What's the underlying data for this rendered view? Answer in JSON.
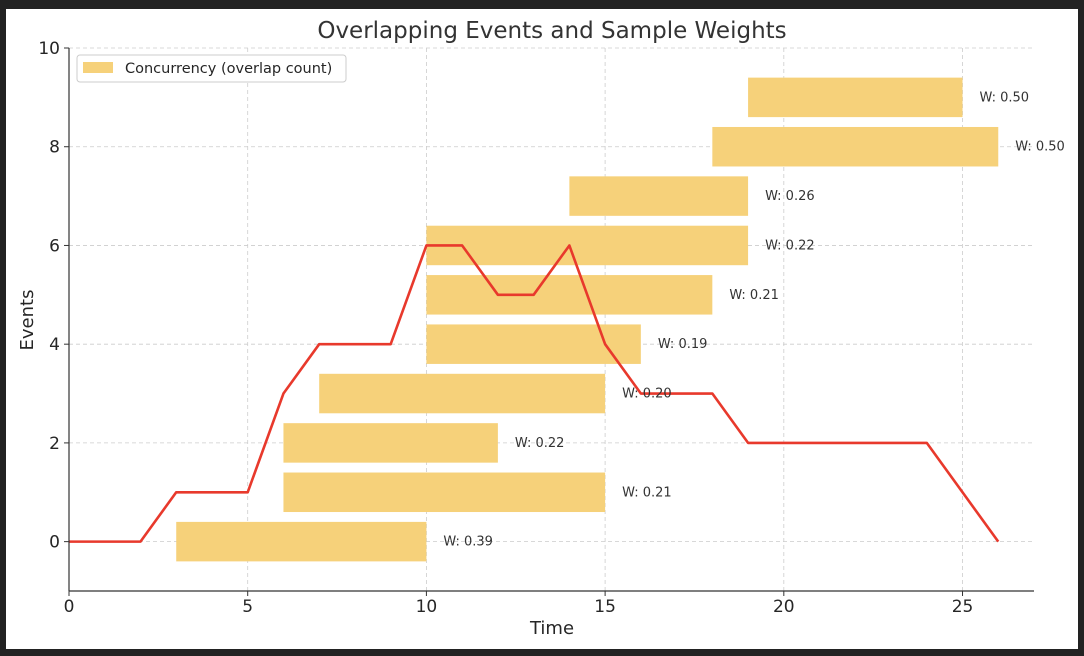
{
  "chart_data": {
    "type": "bar",
    "title": "Overlapping Events and Sample Weights",
    "xlabel": "Time",
    "ylabel": "Events",
    "xlim": [
      0,
      27
    ],
    "ylim": [
      -1,
      10
    ],
    "xticks": [
      "0",
      "5",
      "10",
      "15",
      "20",
      "25"
    ],
    "yticks": [
      "0",
      "2",
      "4",
      "6",
      "8",
      "10"
    ],
    "grid": true,
    "legend_position": "top-left",
    "colors": {
      "bars": "#f6d17a",
      "concurrency_line": "#e8392c",
      "grid": "#cccccc",
      "axis": "#333333"
    },
    "events": [
      {
        "event": 0,
        "start": 3,
        "end": 10,
        "weight_label": "W: 0.39"
      },
      {
        "event": 1,
        "start": 6,
        "end": 15,
        "weight_label": "W: 0.21"
      },
      {
        "event": 2,
        "start": 6,
        "end": 12,
        "weight_label": "W: 0.22"
      },
      {
        "event": 3,
        "start": 7,
        "end": 15,
        "weight_label": "W: 0.20"
      },
      {
        "event": 4,
        "start": 10,
        "end": 16,
        "weight_label": "W: 0.19"
      },
      {
        "event": 5,
        "start": 10,
        "end": 18,
        "weight_label": "W: 0.21"
      },
      {
        "event": 6,
        "start": 10,
        "end": 19,
        "weight_label": "W: 0.22"
      },
      {
        "event": 7,
        "start": 14,
        "end": 19,
        "weight_label": "W: 0.26"
      },
      {
        "event": 8,
        "start": 18,
        "end": 26,
        "weight_label": "W: 0.50"
      },
      {
        "event": 9,
        "start": 19,
        "end": 25,
        "weight_label": "W: 0.50"
      }
    ],
    "series": [
      {
        "name": "Concurrency (overlap count)",
        "x": [
          0,
          2,
          3,
          5,
          6,
          7,
          9,
          10,
          11,
          12,
          13,
          14,
          15,
          16,
          18,
          19,
          24,
          26
        ],
        "y": [
          0,
          0,
          1,
          1,
          3,
          4,
          4,
          6,
          6,
          5,
          5,
          6,
          4,
          3,
          3,
          2,
          2,
          0
        ]
      }
    ]
  }
}
